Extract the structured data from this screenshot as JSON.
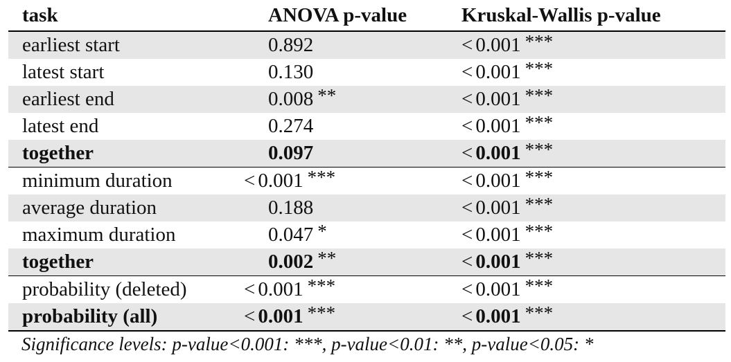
{
  "columns": {
    "task": "task",
    "anova": "ANOVA p-value",
    "kruskal": "Kruskal-Wallis p-value"
  },
  "rows": [
    {
      "task": "earliest start",
      "anova": {
        "cmp": "",
        "value": "0.892",
        "stars": ""
      },
      "kruskal": {
        "cmp": "<",
        "value": "0.001",
        "stars": "***"
      }
    },
    {
      "task": "latest start",
      "anova": {
        "cmp": "",
        "value": "0.130",
        "stars": ""
      },
      "kruskal": {
        "cmp": "<",
        "value": "0.001",
        "stars": "***"
      }
    },
    {
      "task": "earliest end",
      "anova": {
        "cmp": "",
        "value": "0.008",
        "stars": "**"
      },
      "kruskal": {
        "cmp": "<",
        "value": "0.001",
        "stars": "***"
      }
    },
    {
      "task": "latest end",
      "anova": {
        "cmp": "",
        "value": "0.274",
        "stars": ""
      },
      "kruskal": {
        "cmp": "<",
        "value": "0.001",
        "stars": "***"
      }
    },
    {
      "task": "together",
      "anova": {
        "cmp": "",
        "value": "0.097",
        "stars": ""
      },
      "kruskal": {
        "cmp": "<",
        "value": "0.001",
        "stars": "***"
      }
    },
    {
      "task": "minimum duration",
      "anova": {
        "cmp": "<",
        "value": "0.001",
        "stars": "***"
      },
      "kruskal": {
        "cmp": "<",
        "value": "0.001",
        "stars": "***"
      }
    },
    {
      "task": "average duration",
      "anova": {
        "cmp": "",
        "value": "0.188",
        "stars": ""
      },
      "kruskal": {
        "cmp": "<",
        "value": "0.001",
        "stars": "***"
      }
    },
    {
      "task": "maximum duration",
      "anova": {
        "cmp": "",
        "value": "0.047",
        "stars": "*"
      },
      "kruskal": {
        "cmp": "<",
        "value": "0.001",
        "stars": "***"
      }
    },
    {
      "task": "together",
      "anova": {
        "cmp": "",
        "value": "0.002",
        "stars": "**"
      },
      "kruskal": {
        "cmp": "<",
        "value": "0.001",
        "stars": "***"
      }
    },
    {
      "task": "probability (deleted)",
      "anova": {
        "cmp": "<",
        "value": "0.001",
        "stars": "***"
      },
      "kruskal": {
        "cmp": "<",
        "value": "0.001",
        "stars": "***"
      }
    },
    {
      "task": "probability (all)",
      "anova": {
        "cmp": "<",
        "value": "0.001",
        "stars": "***"
      },
      "kruskal": {
        "cmp": "<",
        "value": "0.001",
        "stars": "***"
      }
    }
  ],
  "footnote": "Significance levels: p-value<0.001: ***, p-value<0.01: **, p-value<0.05: *"
}
